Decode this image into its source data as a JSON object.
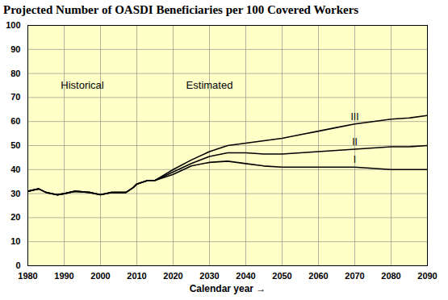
{
  "chart_data": {
    "type": "line",
    "title": "Projected Number of OASDI Beneficiaries per 100 Covered Workers",
    "x_label": "Calendar year",
    "x": [
      1980,
      1983,
      1985,
      1988,
      1990,
      1993,
      1997,
      2000,
      2003,
      2007,
      2009,
      2010,
      2013,
      2015,
      2020,
      2025,
      2030,
      2035,
      2040,
      2045,
      2050,
      2055,
      2060,
      2065,
      2070,
      2075,
      2080,
      2085,
      2090
    ],
    "series": [
      {
        "name": "I",
        "color": "#000000",
        "line_style": "solid",
        "values": [
          31,
          32,
          30.5,
          29.5,
          30,
          31,
          30.5,
          29.5,
          30.5,
          30.5,
          32.5,
          34,
          35.5,
          35.5,
          38,
          41.5,
          43,
          43.5,
          42.5,
          41.5,
          41,
          41,
          41,
          41,
          41,
          40.5,
          40,
          40,
          40
        ]
      },
      {
        "name": "II",
        "color": "#000000",
        "line_style": "solid",
        "values": [
          31,
          32,
          30.5,
          29.5,
          30,
          31,
          30.5,
          29.5,
          30.5,
          30.5,
          32.5,
          34,
          35.5,
          35.5,
          39,
          42.5,
          45.5,
          47,
          47,
          46.5,
          46.5,
          47,
          47.5,
          48,
          48.5,
          49,
          49.5,
          49.5,
          50
        ]
      },
      {
        "name": "III",
        "color": "#000000",
        "line_style": "solid",
        "values": [
          31,
          32,
          30.5,
          29.5,
          30,
          31,
          30.5,
          29.5,
          30.5,
          30.5,
          32.5,
          34,
          35.5,
          35.5,
          40,
          44,
          47.5,
          50,
          51,
          52,
          53,
          54.5,
          56,
          57.5,
          59,
          60,
          61,
          61.5,
          62.5
        ]
      }
    ],
    "annotations": [
      {
        "text": "Historical",
        "x": 1995,
        "y": 75
      },
      {
        "text": "Estimated",
        "x": 2030,
        "y": 75
      }
    ],
    "xlim": [
      1980,
      2090
    ],
    "xticks": [
      1980,
      1990,
      2000,
      2010,
      2020,
      2030,
      2040,
      2050,
      2060,
      2070,
      2080,
      2090
    ],
    "ylim": [
      0,
      100
    ],
    "yticks": [
      0,
      10,
      20,
      30,
      40,
      50,
      60,
      70,
      80,
      90,
      100
    ],
    "grid": true
  }
}
